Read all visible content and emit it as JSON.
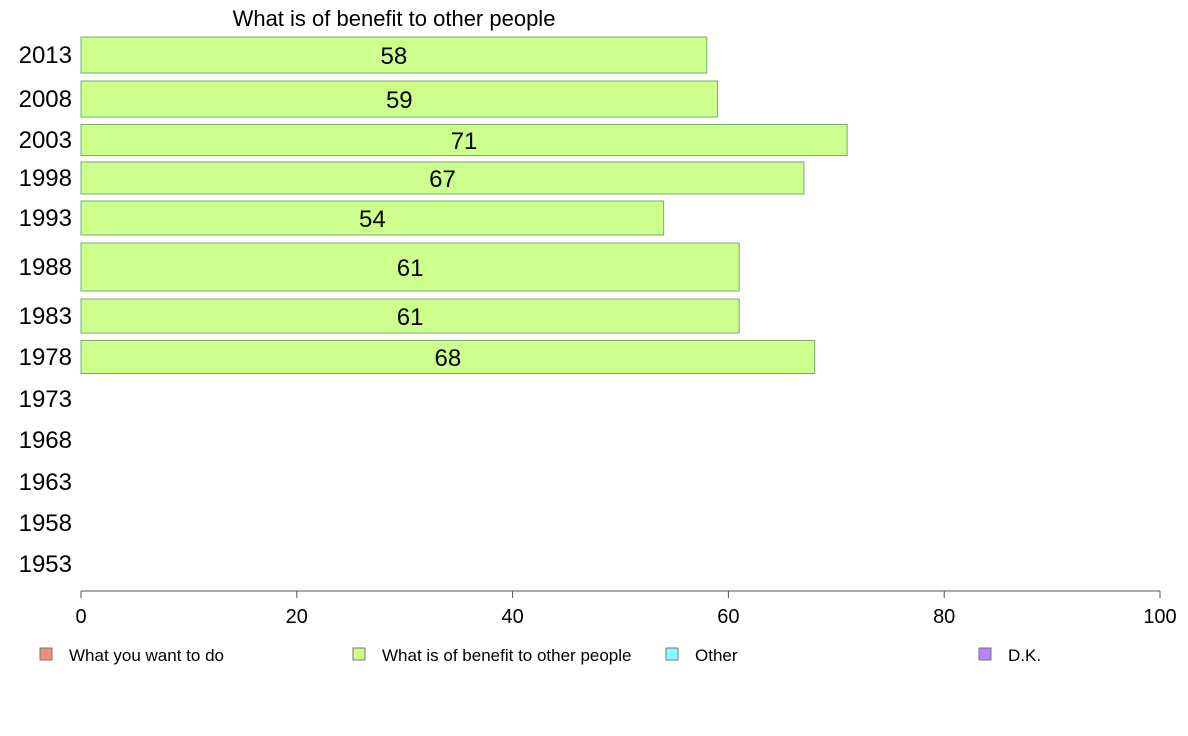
{
  "chart_data": {
    "type": "bar",
    "orientation": "horizontal",
    "title": "What is of benefit to other people",
    "categories": [
      "2013",
      "2008",
      "2003",
      "1998",
      "1993",
      "1988",
      "1983",
      "1978",
      "1973",
      "1968",
      "1963",
      "1958",
      "1953"
    ],
    "series": [
      {
        "name": "What is of benefit to other people",
        "values": [
          58,
          59,
          71,
          67,
          54,
          61,
          61,
          68,
          null,
          null,
          null,
          null,
          null
        ]
      }
    ],
    "xlim": [
      0,
      100
    ],
    "xticks": [
      "0",
      "20",
      "40",
      "60",
      "80",
      "100"
    ],
    "grid": false,
    "legend_position": "bottom",
    "legend": [
      {
        "label": "What you want to do",
        "color": "#f28b82"
      },
      {
        "label": "What is of benefit to other people",
        "color": "#ccff8c"
      },
      {
        "label": "Other",
        "color": "#80ffff"
      },
      {
        "label": "D.K.",
        "color": "#b388ff"
      }
    ]
  }
}
